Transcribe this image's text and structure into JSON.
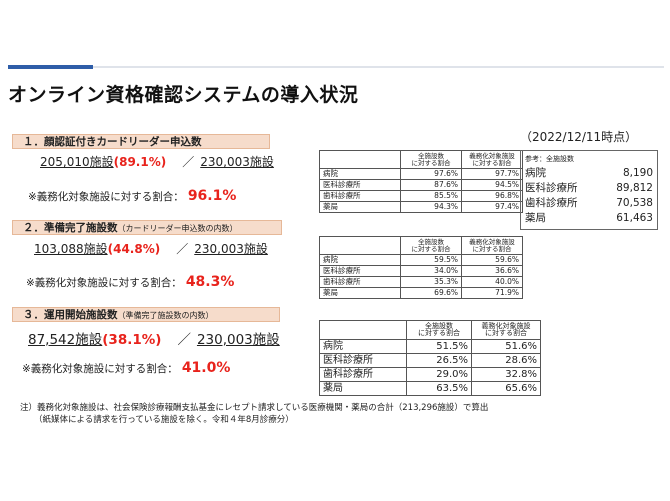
{
  "title": "オンライン資格確認システムの導入状況",
  "date": "（2022/12/11時点）",
  "sections": [
    {
      "head": "１．顔認証付きカードリーダー申込数",
      "head_sub": "",
      "count": "205,010施設",
      "pct": "(89.1%)",
      "sep": "／",
      "total": "230,003施設",
      "ratio_label": "※義務化対象施設に対する割合：",
      "ratio_value": "96.1%",
      "table": {
        "headers": [
          "",
          "全施設数\nに対する割合",
          "義務化対象施設\nに対する割合"
        ],
        "rows": [
          [
            "病院",
            "97.6%",
            "97.7%"
          ],
          [
            "医科診療所",
            "87.6%",
            "94.5%"
          ],
          [
            "歯科診療所",
            "85.5%",
            "96.8%"
          ],
          [
            "薬局",
            "94.3%",
            "97.4%"
          ]
        ]
      }
    },
    {
      "head": "２．準備完了施設数",
      "head_sub": "（カードリーダー申込数の内数）",
      "count": "103,088施設",
      "pct": "(44.8%)",
      "sep": "／",
      "total": "230,003施設",
      "ratio_label": "※義務化対象施設に対する割合：",
      "ratio_value": "48.3%",
      "table": {
        "headers": [
          "",
          "全施設数\nに対する割合",
          "義務化対象施設\nに対する割合"
        ],
        "rows": [
          [
            "病院",
            "59.5%",
            "59.6%"
          ],
          [
            "医科診療所",
            "34.0%",
            "36.6%"
          ],
          [
            "歯科診療所",
            "35.3%",
            "40.0%"
          ],
          [
            "薬局",
            "69.6%",
            "71.9%"
          ]
        ]
      }
    },
    {
      "head": "３．運用開始施設数",
      "head_sub": "（準備完了施設数の内数）",
      "count": "87,542施設",
      "pct": "(38.1%)",
      "sep": "／",
      "total": "230,003施設",
      "ratio_label": "※義務化対象施設に対する割合：",
      "ratio_value": "41.0%",
      "table": {
        "headers": [
          "",
          "全施設数\nに対する割合",
          "義務化対象施設\nに対する割合"
        ],
        "rows": [
          [
            "病院",
            "51.5%",
            "51.6%"
          ],
          [
            "医科診療所",
            "26.5%",
            "28.6%"
          ],
          [
            "歯科診療所",
            "29.0%",
            "32.8%"
          ],
          [
            "薬局",
            "63.5%",
            "65.6%"
          ]
        ]
      }
    }
  ],
  "reference": {
    "head": "参考：全施設数",
    "rows": [
      [
        "病院",
        "8,190"
      ],
      [
        "医科診療所",
        "89,812"
      ],
      [
        "歯科診療所",
        "70,538"
      ],
      [
        "薬局",
        "61,463"
      ]
    ]
  },
  "note": {
    "line1": "注）義務化対象施設は、社会保険診療報酬支払基金にレセプト請求している医療機関・薬局の合計（213,296施設）で算出",
    "line2": "（紙媒体による請求を行っている施設を除く。令和４年8月診療分）"
  }
}
